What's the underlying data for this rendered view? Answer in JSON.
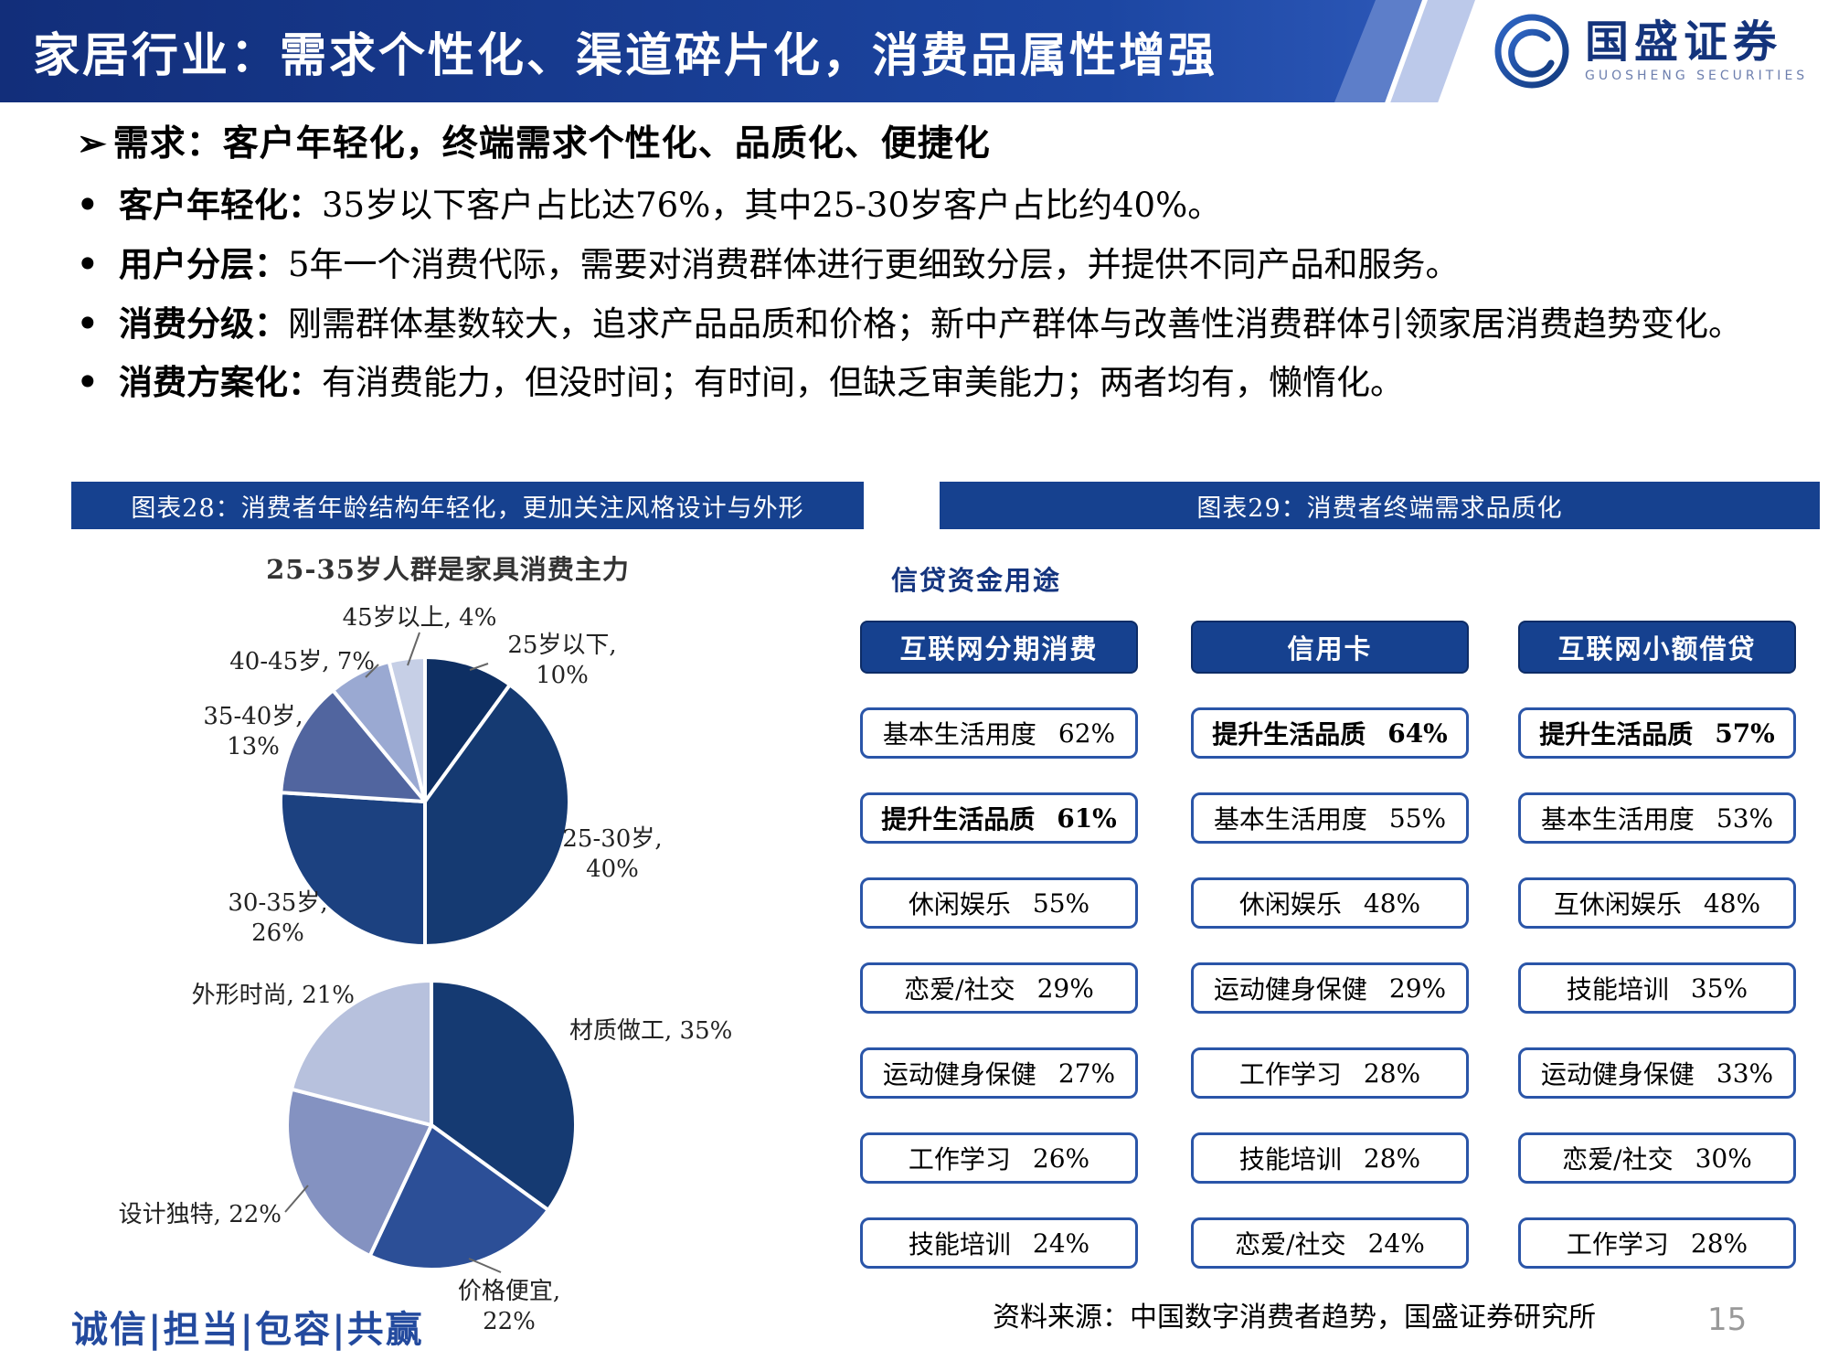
{
  "header": {
    "title": "家居行业：需求个性化、渠道碎片化，消费品属性增强",
    "logo": {
      "name": "国盛证券",
      "subtitle": "GUOSHENG SECURITIES"
    }
  },
  "summary": {
    "lead_marker": "➢",
    "lead": "需求：客户年轻化，终端需求个性化、品质化、便捷化",
    "bullet_marker": "•",
    "bullets": [
      {
        "label": "客户年轻化：",
        "text": "35岁以下客户占比达76%，其中25-30岁客户占比约40%。"
      },
      {
        "label": "用户分层：",
        "text": "5年一个消费代际，需要对消费群体进行更细致分层，并提供不同产品和服务。"
      },
      {
        "label": "消费分级：",
        "text": "刚需群体基数较大，追求产品品质和价格；新中产群体与改善性消费群体引领家居消费趋势变化。"
      },
      {
        "label": "消费方案化：",
        "text": "有消费能力，但没时间；有时间，但缺乏审美能力；两者均有，懒惰化。"
      }
    ]
  },
  "figure28": {
    "header": "图表28：消费者年龄结构年轻化，更加关注风格设计与外形"
  },
  "figure29": {
    "header": "图表29：消费者终端需求品质化",
    "subtitle": "信贷资金用途",
    "columns": [
      {
        "header": "互联网分期消费",
        "items": [
          {
            "label": "基本生活用度",
            "value": "62%",
            "bold": false
          },
          {
            "label": "提升生活品质",
            "value": "61%",
            "bold": true
          },
          {
            "label": "休闲娱乐",
            "value": "55%",
            "bold": false
          },
          {
            "label": "恋爱/社交",
            "value": "29%",
            "bold": false
          },
          {
            "label": "运动健身保健",
            "value": "27%",
            "bold": false
          },
          {
            "label": "工作学习",
            "value": "26%",
            "bold": false
          },
          {
            "label": "技能培训",
            "value": "24%",
            "bold": false
          }
        ]
      },
      {
        "header": "信用卡",
        "items": [
          {
            "label": "提升生活品质",
            "value": "64%",
            "bold": true
          },
          {
            "label": "基本生活用度",
            "value": "55%",
            "bold": false
          },
          {
            "label": "休闲娱乐",
            "value": "48%",
            "bold": false
          },
          {
            "label": "运动健身保健",
            "value": "29%",
            "bold": false
          },
          {
            "label": "工作学习",
            "value": "28%",
            "bold": false
          },
          {
            "label": "技能培训",
            "value": "28%",
            "bold": false
          },
          {
            "label": "恋爱/社交",
            "value": "24%",
            "bold": false
          }
        ]
      },
      {
        "header": "互联网小额借贷",
        "items": [
          {
            "label": "提升生活品质",
            "value": "57%",
            "bold": true
          },
          {
            "label": "基本生活用度",
            "value": "53%",
            "bold": false
          },
          {
            "label": "互休闲娱乐",
            "value": "48%",
            "bold": false
          },
          {
            "label": "技能培训",
            "value": "35%",
            "bold": false
          },
          {
            "label": "运动健身保健",
            "value": "33%",
            "bold": false
          },
          {
            "label": "恋爱/社交",
            "value": "30%",
            "bold": false
          },
          {
            "label": "工作学习",
            "value": "28%",
            "bold": false
          }
        ]
      }
    ]
  },
  "chart_data": [
    {
      "type": "pie",
      "title": "25-35岁人群是家具消费主力",
      "labels": [
        "25岁以下",
        "25-30岁",
        "30-35岁",
        "35-40岁",
        "40-45岁",
        "45岁以上"
      ],
      "values": [
        10,
        40,
        26,
        13,
        7,
        4
      ],
      "unit": "%",
      "colors": [
        "#0e2f63",
        "#153a72",
        "#1c4180",
        "#51659f",
        "#9aa9d2",
        "#c6cfe6"
      ],
      "legend_position": "labels-around-pie"
    },
    {
      "type": "pie",
      "title": "",
      "labels": [
        "材质做工",
        "价格便宜",
        "设计独特",
        "外形时尚"
      ],
      "values": [
        35,
        22,
        22,
        21
      ],
      "unit": "%",
      "colors": [
        "#153a72",
        "#2c4f97",
        "#8492c1",
        "#b7c1dd"
      ],
      "legend_position": "labels-around-pie"
    }
  ],
  "footer": {
    "motto": "诚信|担当|包容|共赢",
    "source": "资料来源：中国数字消费者趋势，国盛证券研究所",
    "page": "15"
  }
}
